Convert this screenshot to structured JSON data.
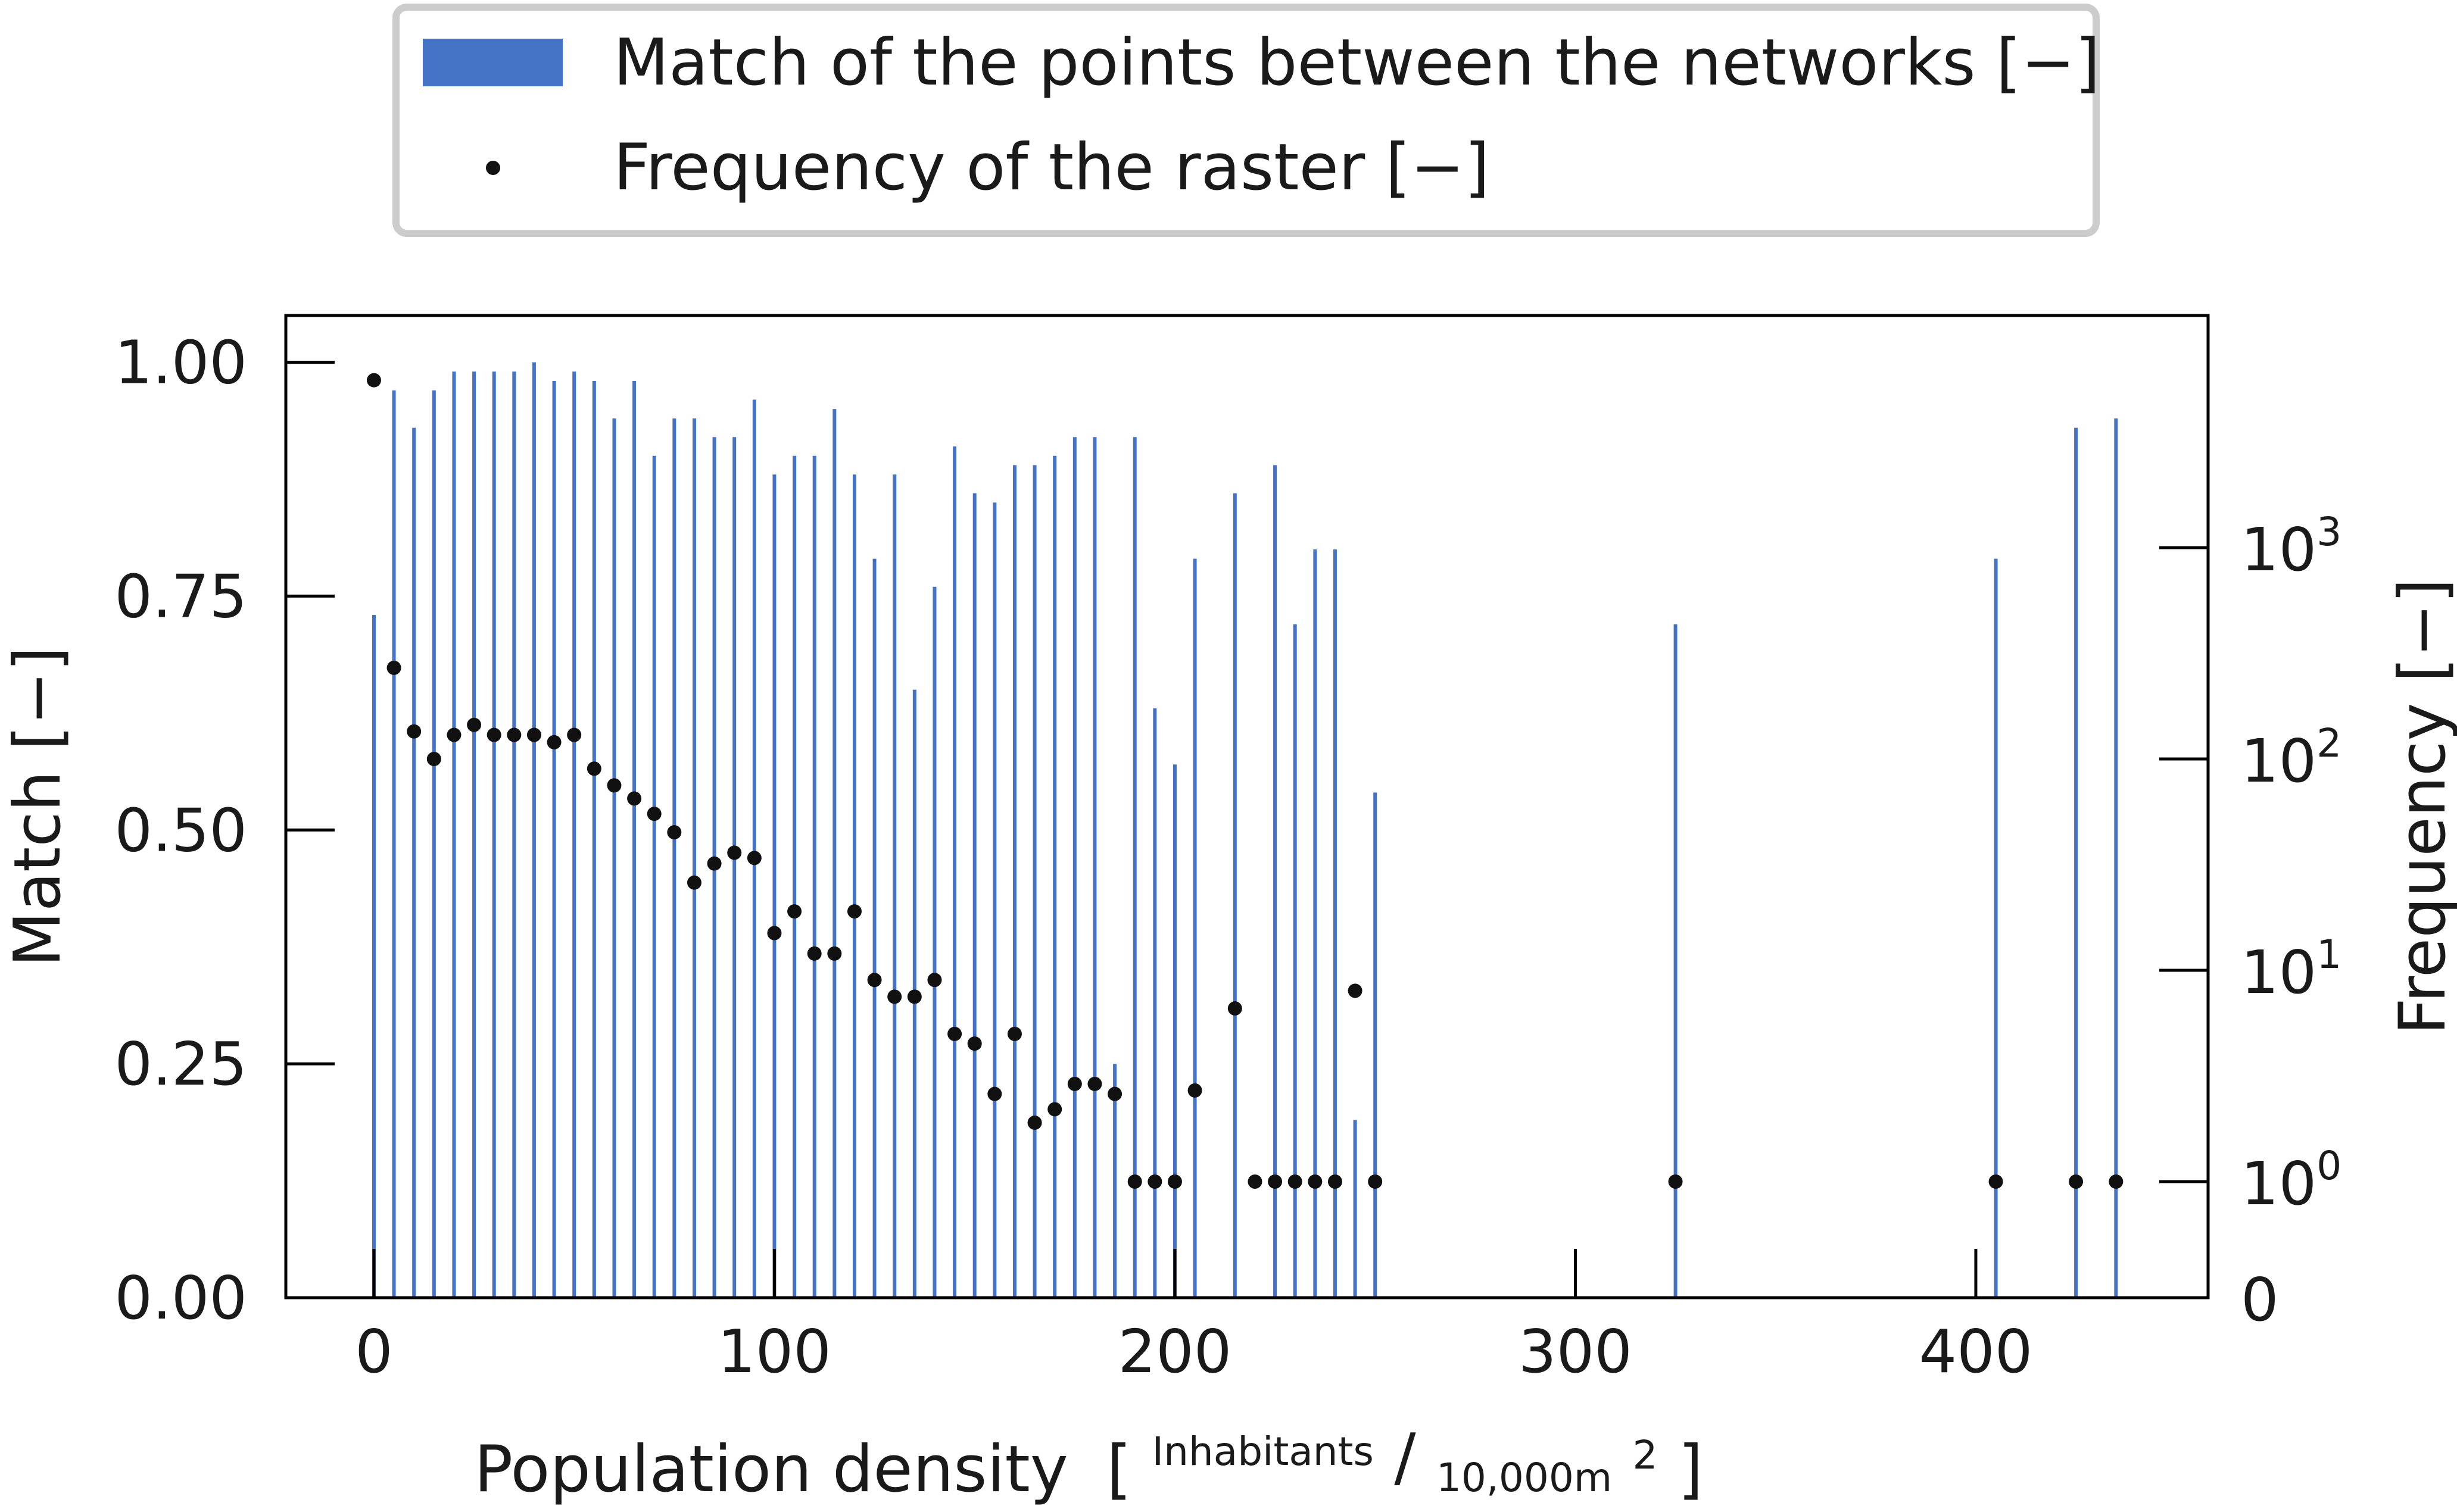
{
  "legend": {
    "bar_label": "Match of the points between the networks [−]",
    "dot_label": "Frequency of the raster [−]"
  },
  "colors": {
    "bar": "#4472c4",
    "dot": "#111111",
    "axis": "#000000",
    "legend_border": "#cccccc"
  },
  "chart_data": {
    "type": "bar",
    "xlabel": "Population density",
    "xlabel_unit": {
      "open": "[",
      "numerator": "Inhabitants",
      "slash": "/",
      "denominator": "10,000m",
      "exp": "2",
      "close": "]"
    },
    "ylabel": "Match [−]",
    "ylabel_right": "Frequency [−]",
    "xlim": [
      -22,
      458
    ],
    "ylim": [
      0,
      1.05
    ],
    "x_ticks": [
      0,
      100,
      200,
      300,
      400
    ],
    "x_tick_labels": [
      "0",
      "100",
      "200",
      "300",
      "400"
    ],
    "y_ticks": [
      0.0,
      0.25,
      0.5,
      0.75,
      1.0
    ],
    "y_tick_labels": [
      "0.00",
      "0.25",
      "0.50",
      "0.75",
      "1.00"
    ],
    "right_axis": {
      "scale": "log",
      "ticks": [
        {
          "value": 0,
          "base": "0",
          "exp": ""
        },
        {
          "value": 1,
          "base": "10",
          "exp": "0"
        },
        {
          "value": 10,
          "base": "10",
          "exp": "1"
        },
        {
          "value": 100,
          "base": "10",
          "exp": "2"
        },
        {
          "value": 1000,
          "base": "10",
          "exp": "3"
        }
      ],
      "ylim": [
        0,
        7000
      ]
    },
    "series": [
      {
        "name": "Match of the points between the networks [−]",
        "type": "bar",
        "x": [
          0,
          5,
          10,
          15,
          20,
          25,
          30,
          35,
          40,
          45,
          50,
          55,
          60,
          65,
          70,
          75,
          80,
          85,
          90,
          95,
          100,
          105,
          110,
          115,
          120,
          125,
          130,
          135,
          140,
          145,
          150,
          155,
          160,
          165,
          170,
          175,
          180,
          185,
          190,
          195,
          200,
          205,
          215,
          225,
          230,
          235,
          240,
          245,
          250,
          325,
          405,
          425,
          435
        ],
        "values": [
          0.73,
          0.97,
          0.93,
          0.97,
          0.99,
          0.99,
          0.99,
          0.99,
          1.0,
          0.98,
          0.99,
          0.98,
          0.94,
          0.98,
          0.9,
          0.94,
          0.94,
          0.92,
          0.92,
          0.96,
          0.88,
          0.9,
          0.9,
          0.95,
          0.88,
          0.79,
          0.88,
          0.65,
          0.76,
          0.91,
          0.86,
          0.85,
          0.89,
          0.89,
          0.9,
          0.92,
          0.92,
          0.25,
          0.92,
          0.63,
          0.57,
          0.79,
          0.86,
          0.89,
          0.72,
          0.8,
          0.8,
          0.19,
          0.54,
          0.72,
          0.79,
          0.93,
          0.94
        ]
      },
      {
        "name": "Frequency of the raster [−]",
        "type": "scatter",
        "x": [
          0,
          5,
          10,
          15,
          20,
          25,
          30,
          35,
          40,
          45,
          50,
          55,
          60,
          65,
          70,
          75,
          80,
          85,
          90,
          95,
          100,
          105,
          110,
          115,
          120,
          125,
          130,
          135,
          140,
          145,
          150,
          155,
          160,
          165,
          170,
          175,
          180,
          185,
          190,
          195,
          200,
          205,
          215,
          220,
          225,
          230,
          235,
          240,
          245,
          250,
          325,
          405,
          425,
          435
        ],
        "values": [
          6200,
          270,
          135,
          100,
          130,
          145,
          130,
          130,
          130,
          120,
          130,
          90,
          75,
          65,
          55,
          45,
          26,
          32,
          36,
          34,
          15,
          19,
          12,
          12,
          19,
          9,
          7.5,
          7.5,
          9,
          5,
          4.5,
          2.6,
          5,
          1.9,
          2.2,
          2.9,
          2.9,
          2.6,
          1,
          1,
          1,
          2.7,
          6.6,
          1,
          1,
          1,
          1,
          1,
          8,
          1,
          1,
          1,
          1,
          1
        ]
      }
    ]
  }
}
